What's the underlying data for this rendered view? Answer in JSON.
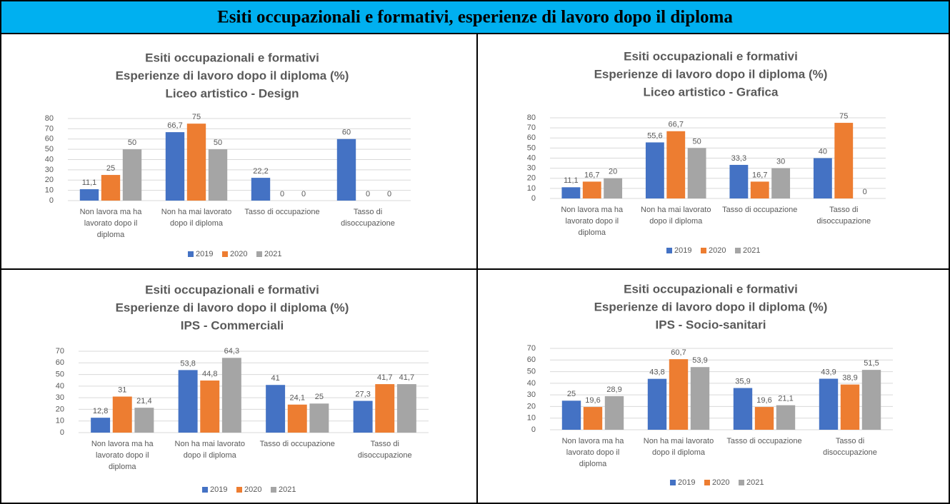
{
  "header": {
    "title": "Esiti occupazionali e formativi, esperienze di lavoro dopo il diploma"
  },
  "chart_data": [
    {
      "type": "bar",
      "title_lines": [
        "Esiti occupazionali e formativi",
        "Esperienze di lavoro dopo il diploma (%)",
        "Liceo artistico - Design"
      ],
      "categories": [
        "Non lavora ma ha lavorato dopo il diploma",
        "Non ha mai lavorato dopo il diploma",
        "Tasso di occupazione",
        "Tasso di disoccupazione"
      ],
      "series": [
        {
          "name": "2019",
          "color": "#4472c4",
          "values": [
            11.1,
            66.7,
            22.2,
            60
          ],
          "value_labels": [
            "11,1",
            "66,7",
            "22,2",
            "60"
          ]
        },
        {
          "name": "2020",
          "color": "#ed7d31",
          "values": [
            25,
            75,
            0,
            0
          ],
          "value_labels": [
            "25",
            "75",
            "0",
            "0"
          ]
        },
        {
          "name": "2021",
          "color": "#a5a5a5",
          "values": [
            50,
            50,
            0,
            0
          ],
          "value_labels": [
            "50",
            "50",
            "0",
            "0"
          ]
        }
      ],
      "ylim": [
        0,
        80
      ],
      "yticks": [
        0,
        10,
        20,
        30,
        40,
        50,
        60,
        70,
        80
      ],
      "grid": true,
      "legend": "bottom"
    },
    {
      "type": "bar",
      "title_lines": [
        "Esiti occupazionali e formativi",
        "Esperienze di lavoro dopo il diploma (%)",
        "Liceo artistico - Grafica"
      ],
      "categories": [
        "Non lavora ma ha lavorato dopo il diploma",
        "Non ha mai lavorato dopo il diploma",
        "Tasso di occupazione",
        "Tasso di disoccupazione"
      ],
      "series": [
        {
          "name": "2019",
          "color": "#4472c4",
          "values": [
            11.1,
            55.6,
            33.3,
            40
          ],
          "value_labels": [
            "11,1",
            "55,6",
            "33,3",
            "40"
          ]
        },
        {
          "name": "2020",
          "color": "#ed7d31",
          "values": [
            16.7,
            66.7,
            16.7,
            75
          ],
          "value_labels": [
            "16,7",
            "66,7",
            "16,7",
            "75"
          ]
        },
        {
          "name": "2021",
          "color": "#a5a5a5",
          "values": [
            20,
            50,
            30,
            0
          ],
          "value_labels": [
            "20",
            "50",
            "30",
            "0"
          ]
        }
      ],
      "ylim": [
        0,
        80
      ],
      "yticks": [
        0,
        10,
        20,
        30,
        40,
        50,
        60,
        70,
        80
      ],
      "grid": true,
      "legend": "bottom"
    },
    {
      "type": "bar",
      "title_lines": [
        "Esiti occupazionali e formativi",
        "Esperienze di lavoro dopo il diploma (%)",
        "IPS - Commerciali"
      ],
      "categories": [
        "Non lavora ma ha lavorato dopo il diploma",
        "Non ha mai lavorato dopo il diploma",
        "Tasso di occupazione",
        "Tasso di disoccupazione"
      ],
      "series": [
        {
          "name": "2019",
          "color": "#4472c4",
          "values": [
            12.8,
            53.8,
            41,
            27.3
          ],
          "value_labels": [
            "12,8",
            "53,8",
            "41",
            "27,3"
          ]
        },
        {
          "name": "2020",
          "color": "#ed7d31",
          "values": [
            31,
            44.8,
            24.1,
            41.7
          ],
          "value_labels": [
            "31",
            "44,8",
            "24,1",
            "41,7"
          ]
        },
        {
          "name": "2021",
          "color": "#a5a5a5",
          "values": [
            21.4,
            64.3,
            25,
            41.7
          ],
          "value_labels": [
            "21,4",
            "64,3",
            "25",
            "41,7"
          ]
        }
      ],
      "ylim": [
        0,
        70
      ],
      "yticks": [
        0,
        10,
        20,
        30,
        40,
        50,
        60,
        70
      ],
      "grid": true,
      "legend": "bottom"
    },
    {
      "type": "bar",
      "title_lines": [
        "Esiti occupazionali e formativi",
        "Esperienze di lavoro dopo il diploma (%)",
        "IPS - Socio-sanitari"
      ],
      "categories": [
        "Non lavora ma ha lavorato dopo il diploma",
        "Non ha mai lavorato dopo il diploma",
        "Tasso di occupazione",
        "Tasso di disoccupazione"
      ],
      "series": [
        {
          "name": "2019",
          "color": "#4472c4",
          "values": [
            25,
            43.8,
            35.9,
            43.9
          ],
          "value_labels": [
            "25",
            "43,8",
            "35,9",
            "43,9"
          ]
        },
        {
          "name": "2020",
          "color": "#ed7d31",
          "values": [
            19.6,
            60.7,
            19.6,
            38.9
          ],
          "value_labels": [
            "19,6",
            "60,7",
            "19,6",
            "38,9"
          ]
        },
        {
          "name": "2021",
          "color": "#a5a5a5",
          "values": [
            28.9,
            53.9,
            21.1,
            51.5
          ],
          "value_labels": [
            "28,9",
            "53,9",
            "21,1",
            "51,5"
          ]
        }
      ],
      "ylim": [
        0,
        70
      ],
      "yticks": [
        0,
        10,
        20,
        30,
        40,
        50,
        60,
        70
      ],
      "grid": true,
      "legend": "bottom"
    }
  ]
}
